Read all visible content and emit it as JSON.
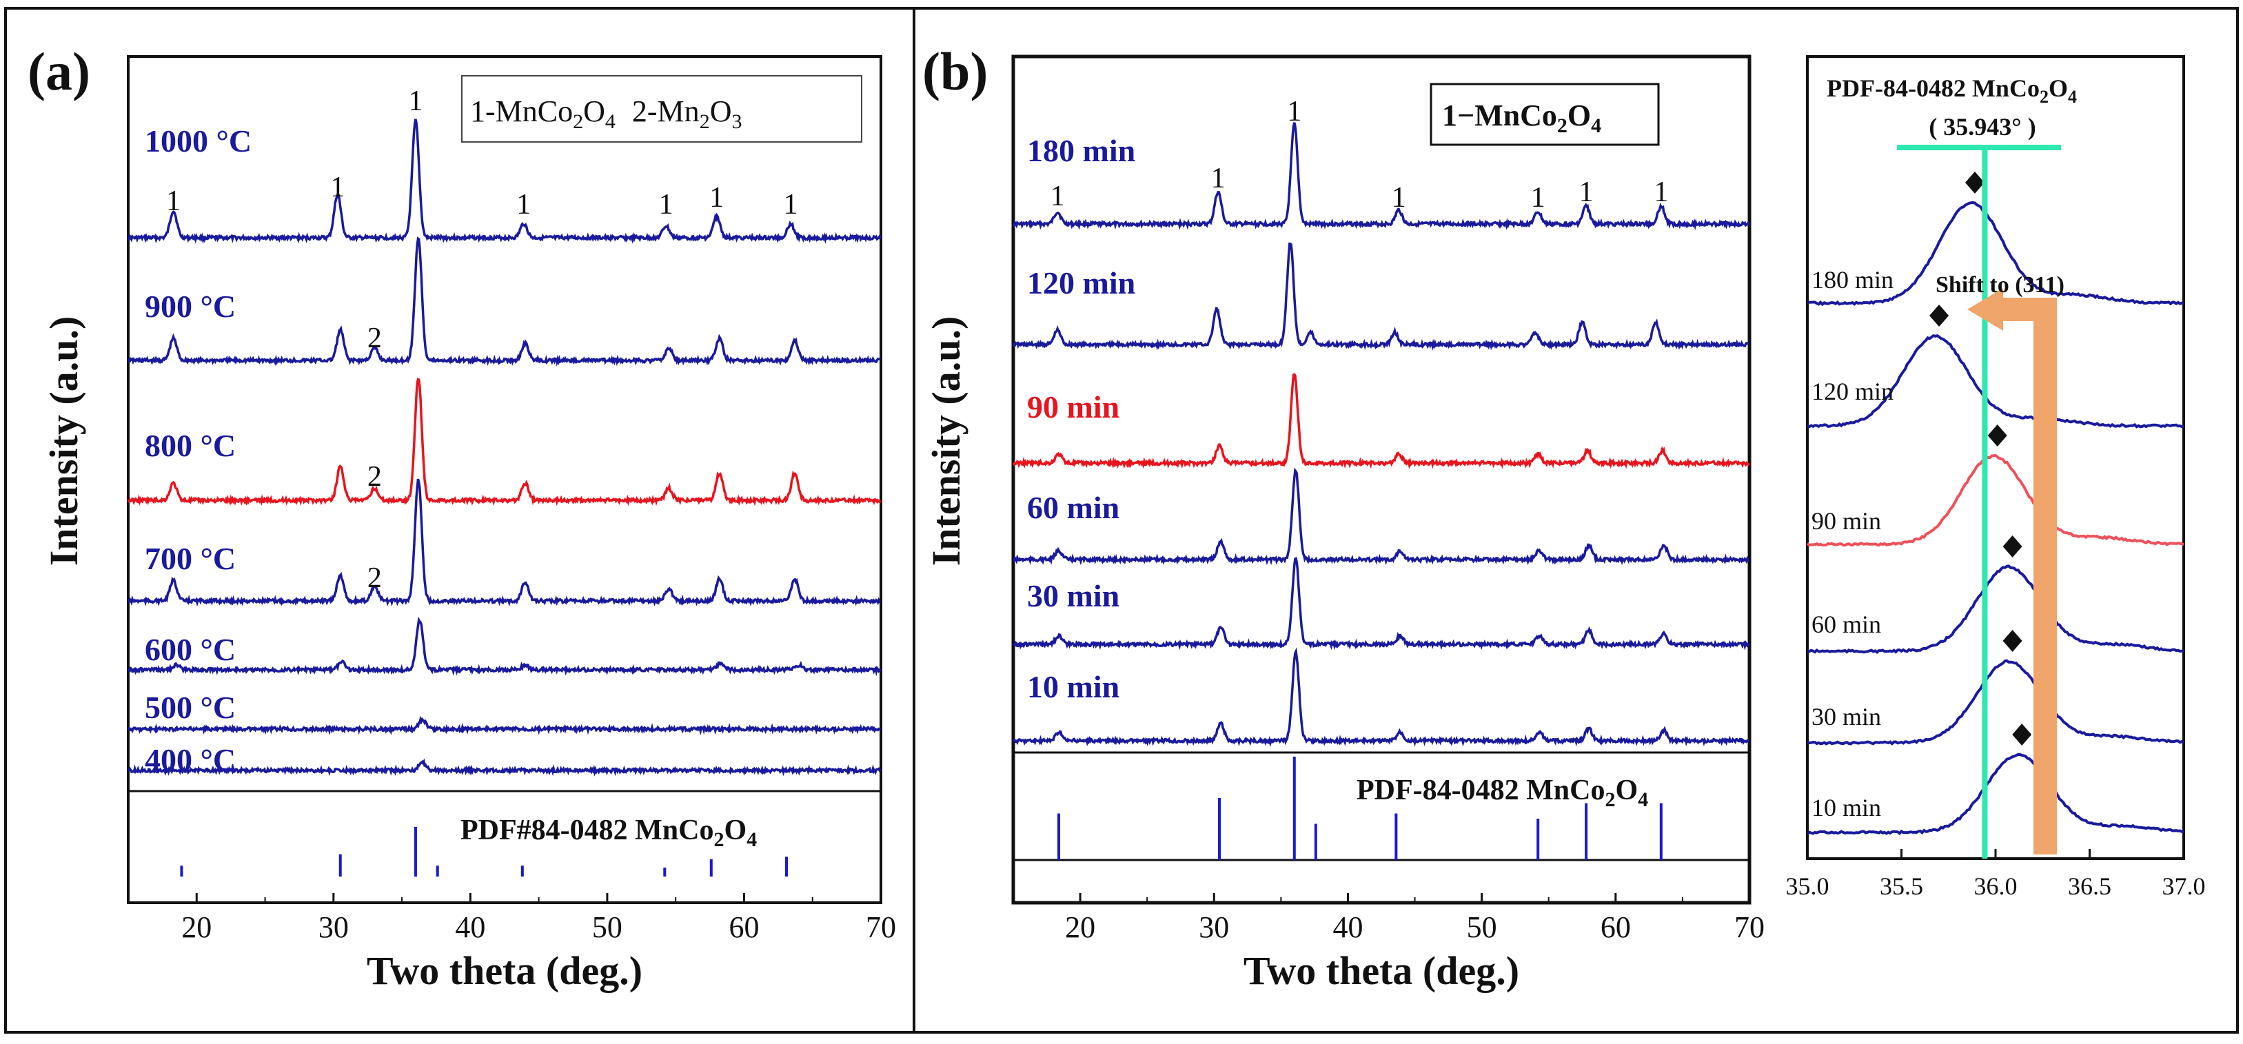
{
  "colors": {
    "blue": "#1a1a9e",
    "red": "#e8141e",
    "ref": "#1a1ad0",
    "cyan": "#2ee8b0",
    "orange": "#f0a66a",
    "pink": "#f0505a"
  },
  "panel_a": {
    "label": "(a)",
    "legend": {
      "p1": "1-MnCo",
      "p1s1": "2",
      "p1o": "O",
      "p1s2": "4",
      "p2": "2-Mn",
      "p2s1": "2",
      "p2o": "O",
      "p2s2": "3"
    },
    "ylabel": "Intensity (a.u.)",
    "xlabel": "Two theta (deg.)",
    "pdf": {
      "t1": "PDF#84-0482  MnCo",
      "s1": "2",
      "t2": "O",
      "s2": "4"
    }
  },
  "panel_b": {
    "label": "(b)",
    "legend": {
      "t": "1−MnCo",
      "s1": "2",
      "o": "O",
      "s2": "4"
    },
    "ylabel": "Intensity (a.u.)",
    "xlabel": "Two theta (deg.)",
    "pdf": {
      "t1": "PDF-84-0482  MnCo",
      "s1": "2",
      "t2": "O",
      "s2": "4"
    }
  },
  "panel_c": {
    "title": {
      "t1": "PDF-84-0482  MnCo",
      "s1": "2",
      "t2": "O",
      "s2": "4"
    },
    "refline": "( 35.943° )",
    "shift": "Shift to (311)"
  },
  "chart_data": [
    {
      "type": "line",
      "panel": "a",
      "xlabel": "Two theta (deg.)",
      "ylabel": "Intensity (a.u.)",
      "xlim": [
        15,
        70
      ],
      "xticks": [
        20,
        30,
        40,
        50,
        60,
        70
      ],
      "series": [
        {
          "name": "1000 °C",
          "color": "#1a1a9e",
          "peaks": [
            [
              18.3,
              0.23
            ],
            [
              30.3,
              0.37
            ],
            [
              36.0,
              1.0
            ],
            [
              43.9,
              0.12
            ],
            [
              54.3,
              0.1
            ],
            [
              58.0,
              0.18
            ],
            [
              63.4,
              0.12
            ]
          ]
        },
        {
          "name": "900 °C",
          "color": "#1a1a9e",
          "peaks": [
            [
              18.3,
              0.18
            ],
            [
              30.5,
              0.25
            ],
            [
              33.0,
              0.1
            ],
            [
              36.2,
              1.0
            ],
            [
              44.0,
              0.14
            ],
            [
              54.5,
              0.1
            ],
            [
              58.2,
              0.18
            ],
            [
              63.7,
              0.16
            ]
          ]
        },
        {
          "name": "800 °C",
          "color": "#e8141e",
          "peaks": [
            [
              18.3,
              0.14
            ],
            [
              30.5,
              0.28
            ],
            [
              33.0,
              0.1
            ],
            [
              36.2,
              1.0
            ],
            [
              44.0,
              0.14
            ],
            [
              54.5,
              0.1
            ],
            [
              58.2,
              0.22
            ],
            [
              63.7,
              0.22
            ]
          ]
        },
        {
          "name": "700 °C",
          "color": "#1a1a9e",
          "peaks": [
            [
              18.3,
              0.17
            ],
            [
              30.5,
              0.21
            ],
            [
              33.0,
              0.12
            ],
            [
              36.2,
              1.0
            ],
            [
              44.0,
              0.16
            ],
            [
              54.5,
              0.1
            ],
            [
              58.2,
              0.18
            ],
            [
              63.7,
              0.18
            ]
          ]
        },
        {
          "name": "600 °C",
          "color": "#1a1a9e",
          "peaks": [
            [
              18.5,
              0.1
            ],
            [
              30.6,
              0.16
            ],
            [
              36.3,
              1.0
            ],
            [
              44.0,
              0.1
            ],
            [
              58.3,
              0.14
            ],
            [
              64.0,
              0.1
            ]
          ]
        },
        {
          "name": "500 °C",
          "color": "#1a1a9e",
          "peaks": [
            [
              36.5,
              1.0
            ]
          ]
        },
        {
          "name": "400 °C",
          "color": "#1a1a9e",
          "peaks": [
            [
              36.5,
              1.0
            ]
          ]
        }
      ],
      "peak_markers": [
        {
          "x": 18.3,
          "label": "1"
        },
        {
          "x": 30.3,
          "label": "1"
        },
        {
          "x": 36.0,
          "label": "1"
        },
        {
          "x": 43.9,
          "label": "1"
        },
        {
          "x": 54.3,
          "label": "1"
        },
        {
          "x": 58.0,
          "label": "1"
        },
        {
          "x": 63.4,
          "label": "1"
        },
        {
          "x": 33.0,
          "label": "2"
        }
      ],
      "reference": {
        "label": "PDF#84-0482 MnCo2O4",
        "lines": [
          [
            18.9,
            0.22
          ],
          [
            30.5,
            0.45
          ],
          [
            36.0,
            1.0
          ],
          [
            37.6,
            0.22
          ],
          [
            43.8,
            0.22
          ],
          [
            54.2,
            0.18
          ],
          [
            57.6,
            0.35
          ],
          [
            63.1,
            0.4
          ]
        ]
      }
    },
    {
      "type": "line",
      "panel": "b",
      "xlabel": "Two theta (deg.)",
      "ylabel": "Intensity (a.u.)",
      "xlim": [
        15,
        70
      ],
      "xticks": [
        20,
        30,
        40,
        50,
        60,
        70
      ],
      "series": [
        {
          "name": "180 min",
          "color": "#1a1a9e",
          "peaks": [
            [
              18.3,
              0.12
            ],
            [
              30.3,
              0.32
            ],
            [
              36.0,
              1.0
            ],
            [
              43.8,
              0.14
            ],
            [
              54.2,
              0.12
            ],
            [
              57.8,
              0.18
            ],
            [
              63.4,
              0.18
            ]
          ]
        },
        {
          "name": "120 min",
          "color": "#1a1a9e",
          "peaks": [
            [
              18.3,
              0.14
            ],
            [
              30.2,
              0.35
            ],
            [
              35.7,
              1.0
            ],
            [
              37.2,
              0.12
            ],
            [
              43.5,
              0.12
            ],
            [
              54.0,
              0.12
            ],
            [
              57.5,
              0.22
            ],
            [
              63.0,
              0.22
            ]
          ]
        },
        {
          "name": "90 min",
          "color": "#e8141e",
          "peaks": [
            [
              18.4,
              0.1
            ],
            [
              30.4,
              0.2
            ],
            [
              36.0,
              1.0
            ],
            [
              43.8,
              0.1
            ],
            [
              54.2,
              0.1
            ],
            [
              57.9,
              0.14
            ],
            [
              63.5,
              0.14
            ]
          ]
        },
        {
          "name": "60 min",
          "color": "#1a1a9e",
          "peaks": [
            [
              18.4,
              0.1
            ],
            [
              30.5,
              0.2
            ],
            [
              36.1,
              1.0
            ],
            [
              43.9,
              0.1
            ],
            [
              54.3,
              0.1
            ],
            [
              58.0,
              0.16
            ],
            [
              63.6,
              0.16
            ]
          ]
        },
        {
          "name": "30 min",
          "color": "#1a1a9e",
          "peaks": [
            [
              18.4,
              0.1
            ],
            [
              30.5,
              0.2
            ],
            [
              36.1,
              1.0
            ],
            [
              43.9,
              0.1
            ],
            [
              54.3,
              0.1
            ],
            [
              58.0,
              0.16
            ],
            [
              63.6,
              0.12
            ]
          ]
        },
        {
          "name": "10 min",
          "color": "#1a1a9e",
          "peaks": [
            [
              18.4,
              0.1
            ],
            [
              30.5,
              0.2
            ],
            [
              36.1,
              1.0
            ],
            [
              43.9,
              0.1
            ],
            [
              54.3,
              0.1
            ],
            [
              58.0,
              0.14
            ],
            [
              63.6,
              0.12
            ]
          ]
        }
      ],
      "peak_markers": [
        {
          "x": 18.3,
          "label": "1"
        },
        {
          "x": 30.3,
          "label": "1"
        },
        {
          "x": 36.0,
          "label": "1"
        },
        {
          "x": 43.8,
          "label": "1"
        },
        {
          "x": 54.2,
          "label": "1"
        },
        {
          "x": 57.8,
          "label": "1"
        },
        {
          "x": 63.4,
          "label": "1"
        }
      ],
      "reference": {
        "label": "PDF-84-0482 MnCo2O4",
        "lines": [
          [
            18.4,
            0.45
          ],
          [
            30.4,
            0.6
          ],
          [
            36.0,
            1.0
          ],
          [
            37.6,
            0.35
          ],
          [
            43.6,
            0.45
          ],
          [
            54.2,
            0.4
          ],
          [
            57.8,
            0.55
          ],
          [
            63.4,
            0.55
          ]
        ]
      }
    },
    {
      "type": "line",
      "panel": "c",
      "xlim": [
        35.0,
        37.0
      ],
      "xticks": [
        35.0,
        35.5,
        36.0,
        36.5,
        37.0
      ],
      "reference_position": 35.943,
      "series": [
        {
          "name": "180 min",
          "color": "#1a1a9e",
          "peak": 35.87
        },
        {
          "name": "120 min",
          "color": "#1a1a9e",
          "peak": 35.68
        },
        {
          "name": "90 min",
          "color": "#f0505a",
          "peak": 35.99
        },
        {
          "name": "60 min",
          "color": "#1a1a9e",
          "peak": 36.07
        },
        {
          "name": "30 min",
          "color": "#1a1a9e",
          "peak": 36.07
        },
        {
          "name": "10 min",
          "color": "#1a1a9e",
          "peak": 36.12
        }
      ],
      "annotation": "Shift to (311)"
    }
  ]
}
